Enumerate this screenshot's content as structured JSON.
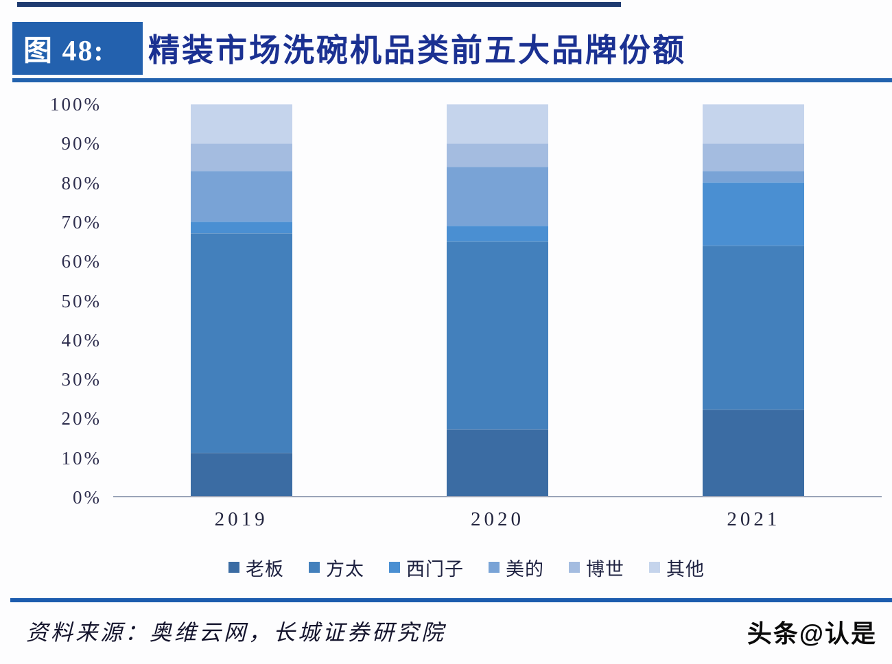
{
  "page": {
    "figure_label": "图 48:",
    "title": "精装市场洗碗机品类前五大品牌份额",
    "source": "资料来源：奥维云网，长城证券研究院",
    "watermark": "头条@认是",
    "colors": {
      "title_box": "#2361ae",
      "title_text": "#1b3192",
      "title_underline": "#2262ae",
      "top_line": "#1e3a70",
      "divider": "#1c5cae"
    }
  },
  "chart_data": {
    "type": "bar",
    "stacked": true,
    "title": "精装市场洗碗机品类前五大品牌份额",
    "categories": [
      "2019",
      "2020",
      "2021"
    ],
    "series": [
      {
        "name": "老板",
        "color": "#3b6ca3",
        "values": [
          11,
          17,
          22
        ]
      },
      {
        "name": "方太",
        "color": "#4380bc",
        "values": [
          56,
          48,
          42
        ]
      },
      {
        "name": "西门子",
        "color": "#4a8fd2",
        "values": [
          3,
          4,
          16
        ]
      },
      {
        "name": "美的",
        "color": "#79a3d6",
        "values": [
          13,
          15,
          3
        ]
      },
      {
        "name": "博世",
        "color": "#a4bce0",
        "values": [
          7,
          6,
          7
        ]
      },
      {
        "name": "其他",
        "color": "#c5d4ec",
        "values": [
          10,
          10,
          10
        ]
      }
    ],
    "xlabel": "",
    "ylabel": "",
    "ylim": [
      0,
      100
    ],
    "yticks": [
      "0%",
      "10%",
      "20%",
      "30%",
      "40%",
      "50%",
      "60%",
      "70%",
      "80%",
      "90%",
      "100%"
    ],
    "grid": false,
    "legend_position": "bottom"
  }
}
